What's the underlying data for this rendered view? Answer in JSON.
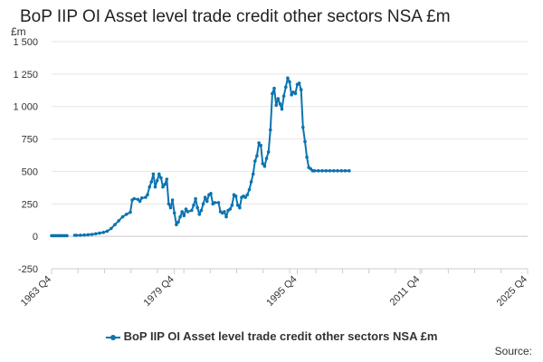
{
  "colors": {
    "series": "#0b74b0",
    "grid": "#e6e6e6",
    "axis": "#cccccc",
    "text": "#333333"
  },
  "legend_label": "BoP IIP OI Asset level trade credit other sectors NSA £m",
  "source_label": "Source:",
  "chart_data": {
    "type": "line",
    "title": "BoP IIP OI Asset level trade credit other sectors NSA £m",
    "ylabel": "£m",
    "xlabel": "",
    "ylim": [
      -250,
      1500
    ],
    "yticks": [
      -250,
      0,
      250,
      500,
      750,
      1000,
      1250,
      1500
    ],
    "ytick_labels": [
      "-250",
      "0",
      "250",
      "500",
      "750",
      "1 000",
      "1 250",
      "1 500"
    ],
    "xlim": [
      1963.75,
      2025.75
    ],
    "xticks": [
      1963.75,
      1979.75,
      1995.75,
      2011.75,
      2025.75
    ],
    "xtick_labels": [
      "1963 Q4",
      "1979 Q4",
      "1995 Q4",
      "2011 Q4",
      "2025 Q4"
    ],
    "grid": true,
    "legend_position": "bottom",
    "series": [
      {
        "name": "BoP IIP OI Asset level trade credit other sectors NSA £m",
        "segments": [
          [
            [
              1963.75,
              5
            ],
            [
              1964.0,
              5
            ],
            [
              1964.25,
              5
            ],
            [
              1964.5,
              5
            ],
            [
              1964.75,
              5
            ],
            [
              1965.0,
              5
            ],
            [
              1965.25,
              5
            ],
            [
              1965.5,
              5
            ],
            [
              1965.75,
              5
            ]
          ],
          [
            [
              1966.75,
              8
            ],
            [
              1967.0,
              8
            ],
            [
              1967.5,
              9
            ],
            [
              1968.0,
              10
            ],
            [
              1968.5,
              12
            ],
            [
              1969.0,
              15
            ],
            [
              1969.5,
              20
            ],
            [
              1970.0,
              25
            ],
            [
              1970.5,
              30
            ],
            [
              1971.0,
              40
            ],
            [
              1971.5,
              60
            ],
            [
              1972.0,
              90
            ],
            [
              1972.5,
              120
            ],
            [
              1973.0,
              150
            ],
            [
              1973.5,
              170
            ],
            [
              1974.0,
              185
            ],
            [
              1974.25,
              280
            ],
            [
              1974.5,
              290
            ],
            [
              1975.0,
              285
            ],
            [
              1975.25,
              270
            ],
            [
              1975.5,
              295
            ],
            [
              1976.0,
              300
            ],
            [
              1976.25,
              320
            ],
            [
              1976.5,
              380
            ],
            [
              1976.75,
              420
            ],
            [
              1977.0,
              480
            ],
            [
              1977.25,
              380
            ],
            [
              1977.5,
              430
            ],
            [
              1977.75,
              480
            ],
            [
              1978.0,
              450
            ],
            [
              1978.25,
              380
            ],
            [
              1978.5,
              400
            ],
            [
              1978.75,
              440
            ],
            [
              1979.0,
              250
            ],
            [
              1979.25,
              220
            ],
            [
              1979.5,
              280
            ],
            [
              1979.75,
              180
            ],
            [
              1980.0,
              90
            ],
            [
              1980.25,
              110
            ],
            [
              1980.5,
              150
            ],
            [
              1980.75,
              190
            ],
            [
              1981.0,
              160
            ],
            [
              1981.25,
              210
            ],
            [
              1981.5,
              190
            ],
            [
              1982.0,
              200
            ],
            [
              1982.25,
              240
            ],
            [
              1982.5,
              290
            ],
            [
              1982.75,
              220
            ],
            [
              1983.0,
              170
            ],
            [
              1983.25,
              200
            ],
            [
              1983.5,
              250
            ],
            [
              1983.75,
              300
            ],
            [
              1984.0,
              270
            ],
            [
              1984.25,
              320
            ],
            [
              1984.5,
              330
            ],
            [
              1984.75,
              250
            ],
            [
              1985.0,
              260
            ],
            [
              1985.5,
              260
            ],
            [
              1985.75,
              190
            ],
            [
              1986.0,
              180
            ],
            [
              1986.25,
              190
            ],
            [
              1986.5,
              150
            ],
            [
              1986.75,
              200
            ],
            [
              1987.0,
              210
            ],
            [
              1987.25,
              240
            ],
            [
              1987.5,
              320
            ],
            [
              1987.75,
              310
            ],
            [
              1988.0,
              240
            ],
            [
              1988.25,
              220
            ],
            [
              1988.5,
              300
            ],
            [
              1988.75,
              310
            ],
            [
              1989.0,
              300
            ],
            [
              1989.25,
              320
            ],
            [
              1989.5,
              360
            ],
            [
              1989.75,
              420
            ],
            [
              1990.0,
              480
            ],
            [
              1990.25,
              580
            ],
            [
              1990.5,
              620
            ],
            [
              1990.75,
              720
            ],
            [
              1991.0,
              700
            ],
            [
              1991.25,
              560
            ],
            [
              1991.5,
              540
            ],
            [
              1991.75,
              600
            ],
            [
              1992.0,
              650
            ],
            [
              1992.25,
              820
            ],
            [
              1992.5,
              1100
            ],
            [
              1992.75,
              1140
            ],
            [
              1993.0,
              1010
            ],
            [
              1993.25,
              1060
            ],
            [
              1993.5,
              1020
            ],
            [
              1993.75,
              980
            ],
            [
              1994.0,
              1080
            ],
            [
              1994.25,
              1150
            ],
            [
              1994.5,
              1220
            ],
            [
              1994.75,
              1190
            ],
            [
              1995.0,
              1090
            ],
            [
              1995.25,
              1110
            ],
            [
              1995.5,
              1100
            ],
            [
              1995.75,
              1170
            ],
            [
              1996.0,
              1180
            ],
            [
              1996.25,
              1130
            ],
            [
              1996.5,
              840
            ],
            [
              1996.75,
              730
            ],
            [
              1997.0,
              610
            ],
            [
              1997.25,
              530
            ],
            [
              1997.5,
              520
            ],
            [
              1997.75,
              505
            ],
            [
              1998.0,
              505
            ],
            [
              1998.5,
              505
            ],
            [
              1999.0,
              505
            ],
            [
              1999.5,
              505
            ],
            [
              2000.0,
              505
            ],
            [
              2000.5,
              505
            ],
            [
              2001.0,
              505
            ],
            [
              2001.5,
              505
            ],
            [
              2002.0,
              505
            ],
            [
              2002.5,
              505
            ]
          ]
        ]
      }
    ]
  }
}
